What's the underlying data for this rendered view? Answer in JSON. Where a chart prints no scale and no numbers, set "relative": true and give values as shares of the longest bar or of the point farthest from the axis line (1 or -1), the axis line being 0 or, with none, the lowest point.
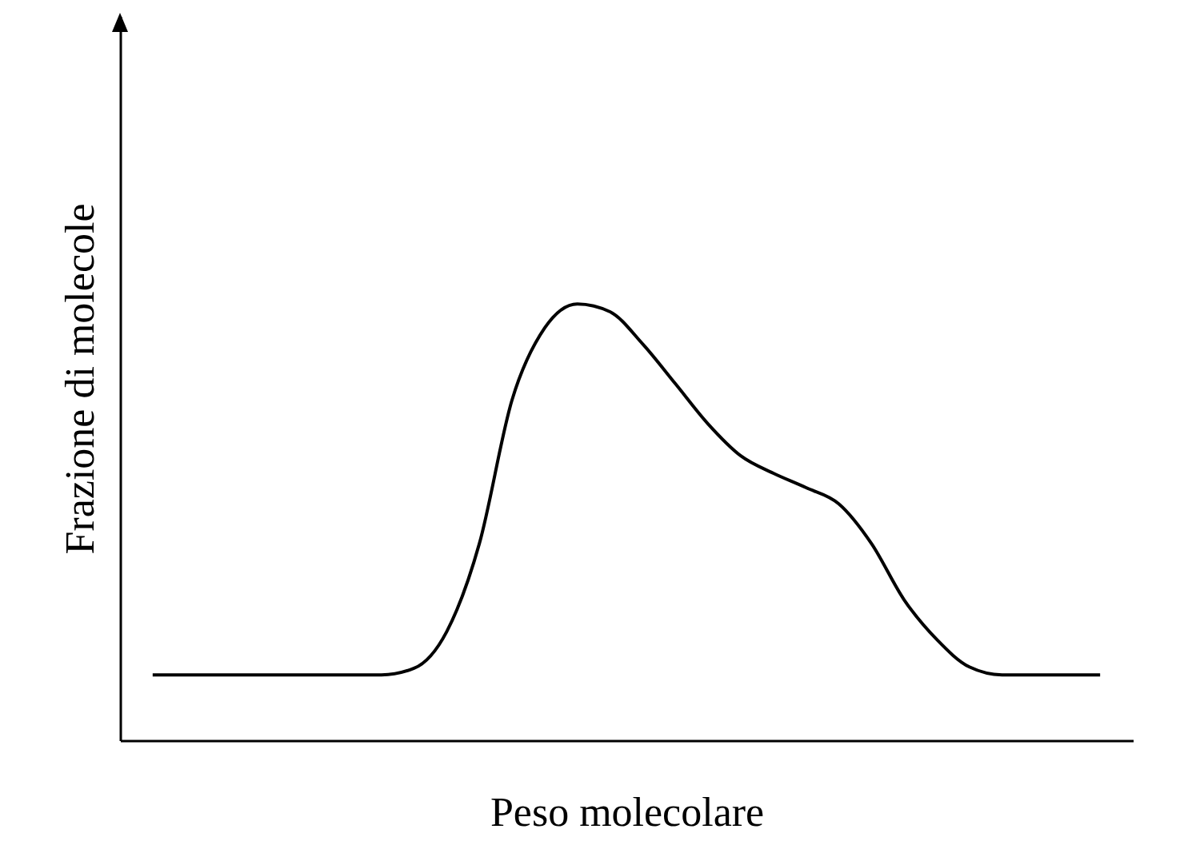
{
  "chart_data": {
    "type": "line",
    "relative": true,
    "xlabel": "Peso molecolare",
    "ylabel": "Frazione di molecole",
    "grid": false,
    "marker": "none",
    "line_style": "solid",
    "categories": [
      null,
      null,
      null,
      null,
      null,
      null,
      null,
      null,
      null,
      null,
      null,
      null,
      null,
      null,
      null,
      null,
      null,
      null,
      null,
      null,
      null,
      null,
      null,
      null,
      null,
      null,
      null,
      null,
      null,
      null
    ],
    "series": [
      {
        "color": "#000000",
        "values": [
          0.15,
          0.15,
          0.15,
          0.15,
          0.15,
          0.15,
          0.15,
          0.15,
          0.165,
          0.249,
          0.451,
          0.78,
          0.945,
          1,
          0.982,
          0.908,
          0.817,
          0.725,
          0.652,
          0.612,
          0.579,
          0.542,
          0.451,
          0.322,
          0.231,
          0.168,
          0.15,
          0.15,
          0.15,
          0.15
        ]
      }
    ]
  }
}
